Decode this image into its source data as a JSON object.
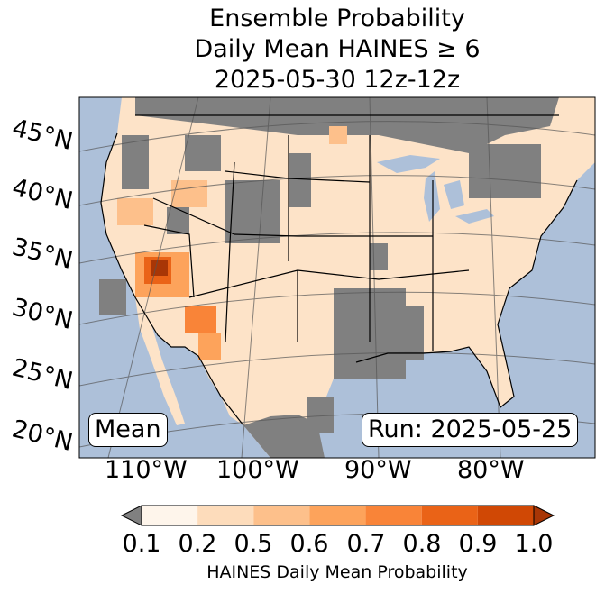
{
  "title": {
    "line1": "Ensemble Probability",
    "line2": "Daily Mean HAINES ≥ 6",
    "line3": "2025-05-30 12z-12z"
  },
  "map": {
    "region": "Continental United States",
    "ocean_color": "#adc0d9",
    "no_data_color": "#808080",
    "lat_labels": [
      "45°N",
      "40°N",
      "35°N",
      "30°N",
      "25°N",
      "20°N"
    ],
    "lon_labels": [
      "110°W",
      "100°W",
      "90°W",
      "80°W"
    ]
  },
  "annotations": {
    "left_box": "Mean",
    "right_box": "Run: 2025-05-25"
  },
  "colorbar": {
    "ticks": [
      "0.1",
      "0.2",
      "0.5",
      "0.6",
      "0.7",
      "0.8",
      "0.9",
      "1.0"
    ],
    "colors": [
      "#fef5eb",
      "#fddcbb",
      "#fdc08b",
      "#fda35b",
      "#f98438",
      "#ea6317",
      "#d04805"
    ],
    "under_color": "#808080",
    "over_color": "#a83606",
    "label": "HAINES Daily Mean Probability"
  }
}
